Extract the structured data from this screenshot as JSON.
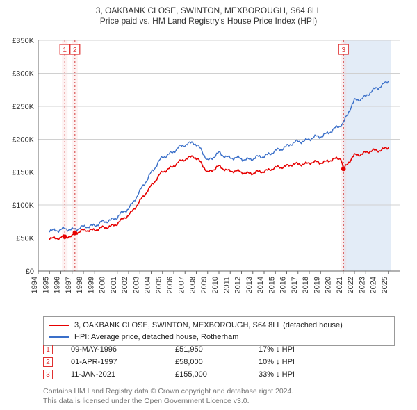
{
  "title": {
    "line1": "3, OAKBANK CLOSE, SWINTON, MEXBOROUGH, S64 8LL",
    "line2": "Price paid vs. HM Land Registry's House Price Index (HPI)"
  },
  "chart": {
    "type": "line",
    "x_extent_years": [
      1994,
      2026
    ],
    "ylim": [
      0,
      350000
    ],
    "ytick_step": 50000,
    "ytick_labels": [
      "£0",
      "£50K",
      "£100K",
      "£150K",
      "£200K",
      "£250K",
      "£300K",
      "£350K"
    ],
    "xticks_years": [
      1994,
      1995,
      1996,
      1997,
      1998,
      1999,
      2000,
      2001,
      2002,
      2003,
      2004,
      2005,
      2006,
      2007,
      2008,
      2009,
      2010,
      2011,
      2012,
      2013,
      2014,
      2015,
      2016,
      2017,
      2018,
      2019,
      2020,
      2021,
      2022,
      2023,
      2024,
      2025
    ],
    "background_color": "#ffffff",
    "grid_color": "#d0d0d0",
    "right_shade": {
      "from_year": 2021.03,
      "to_year": 2025.2,
      "color": "#e3ecf7"
    },
    "series": {
      "property": {
        "color": "#e60000",
        "width": 1.6,
        "label": "3, OAKBANK CLOSE, SWINTON, MEXBOROUGH, S64 8LL (detached house)",
        "data_yearly": [
          [
            1995.0,
            50000
          ],
          [
            1996.0,
            50500
          ],
          [
            1996.35,
            51950
          ],
          [
            1997.0,
            53000
          ],
          [
            1997.25,
            58000
          ],
          [
            1998.0,
            61000
          ],
          [
            1999.0,
            63000
          ],
          [
            2000.0,
            66000
          ],
          [
            2001.0,
            72000
          ],
          [
            2002.0,
            85000
          ],
          [
            2003.0,
            105000
          ],
          [
            2004.0,
            130000
          ],
          [
            2005.0,
            150000
          ],
          [
            2006.0,
            160000
          ],
          [
            2007.0,
            170000
          ],
          [
            2007.7,
            175000
          ],
          [
            2008.5,
            162000
          ],
          [
            2009.0,
            150000
          ],
          [
            2010.0,
            158000
          ],
          [
            2011.0,
            152000
          ],
          [
            2012.0,
            150000
          ],
          [
            2013.0,
            148000
          ],
          [
            2014.0,
            152000
          ],
          [
            2015.0,
            156000
          ],
          [
            2016.0,
            160000
          ],
          [
            2017.0,
            162000
          ],
          [
            2018.0,
            164000
          ],
          [
            2019.0,
            165000
          ],
          [
            2020.0,
            168000
          ],
          [
            2020.8,
            172000
          ],
          [
            2021.03,
            155000
          ],
          [
            2021.5,
            165000
          ],
          [
            2022.0,
            175000
          ],
          [
            2023.0,
            180000
          ],
          [
            2024.0,
            183000
          ],
          [
            2025.0,
            187000
          ]
        ]
      },
      "hpi": {
        "color": "#3a6fc9",
        "width": 1.4,
        "label": "HPI: Average price, detached house, Rotherham",
        "data_yearly": [
          [
            1995.0,
            62000
          ],
          [
            1996.0,
            62500
          ],
          [
            1997.0,
            63500
          ],
          [
            1998.0,
            66000
          ],
          [
            1999.0,
            70000
          ],
          [
            2000.0,
            75000
          ],
          [
            2001.0,
            82000
          ],
          [
            2002.0,
            95000
          ],
          [
            2003.0,
            120000
          ],
          [
            2004.0,
            150000
          ],
          [
            2005.0,
            172000
          ],
          [
            2006.0,
            182000
          ],
          [
            2007.0,
            192000
          ],
          [
            2007.7,
            196000
          ],
          [
            2008.5,
            182000
          ],
          [
            2009.0,
            168000
          ],
          [
            2010.0,
            178000
          ],
          [
            2011.0,
            172000
          ],
          [
            2012.0,
            170000
          ],
          [
            2013.0,
            170000
          ],
          [
            2014.0,
            175000
          ],
          [
            2015.0,
            181000
          ],
          [
            2016.0,
            190000
          ],
          [
            2017.0,
            196000
          ],
          [
            2018.0,
            200000
          ],
          [
            2019.0,
            205000
          ],
          [
            2020.0,
            212000
          ],
          [
            2021.0,
            225000
          ],
          [
            2022.0,
            258000
          ],
          [
            2023.0,
            265000
          ],
          [
            2024.0,
            278000
          ],
          [
            2025.0,
            288000
          ]
        ]
      }
    },
    "events": [
      {
        "num": "1",
        "year": 1996.35,
        "value": 51950,
        "band_color": "#f7cfcf"
      },
      {
        "num": "2",
        "year": 1997.25,
        "value": 58000,
        "band_color": "#f7cfcf"
      },
      {
        "num": "3",
        "year": 2021.03,
        "value": 155000,
        "band_color": "#f7cfcf"
      }
    ],
    "jitter_amp": 4500
  },
  "legend": {
    "series": [
      {
        "color": "#e60000",
        "key": "chart.series.property.label"
      },
      {
        "color": "#3a6fc9",
        "key": "chart.series.hpi.label"
      }
    ]
  },
  "sales": [
    {
      "num": "1",
      "date": "09-MAY-1996",
      "price": "£51,950",
      "delta": "17% ↓ HPI"
    },
    {
      "num": "2",
      "date": "01-APR-1997",
      "price": "£58,000",
      "delta": "10% ↓ HPI"
    },
    {
      "num": "3",
      "date": "11-JAN-2021",
      "price": "£155,000",
      "delta": "33% ↓ HPI"
    }
  ],
  "attribution": {
    "line1": "Contains HM Land Registry data © Crown copyright and database right 2024.",
    "line2": "This data is licensed under the Open Government Licence v3.0."
  }
}
